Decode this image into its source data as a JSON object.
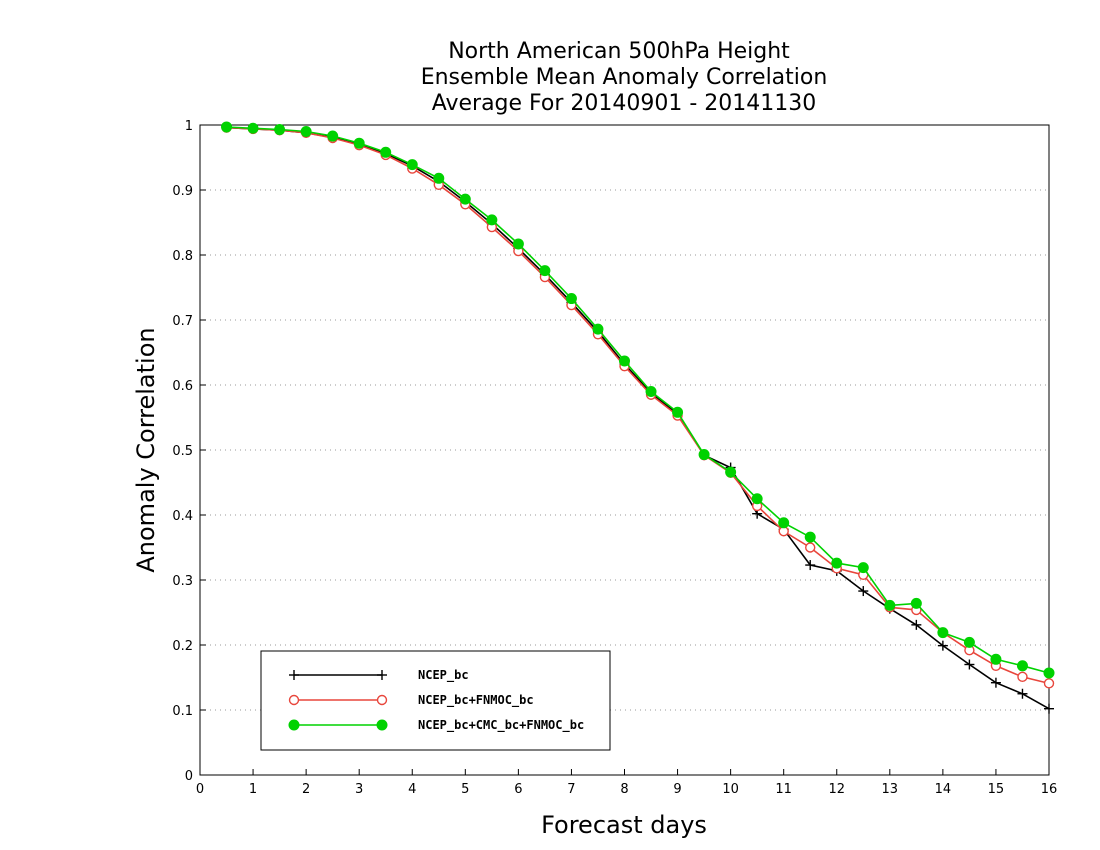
{
  "chart_data": {
    "type": "line",
    "title_lines": [
      "North American 500hPa Height",
      "Ensemble Mean Anomaly Correlation",
      "Average For 20140901 - 20141130"
    ],
    "xlabel": "Forecast days",
    "ylabel": "Anomaly Correlation",
    "xlim": [
      0,
      16
    ],
    "ylim": [
      0,
      1
    ],
    "x_ticks": [
      "0",
      "1",
      "2",
      "3",
      "4",
      "5",
      "6",
      "7",
      "8",
      "9",
      "10",
      "11",
      "12",
      "13",
      "14",
      "15",
      "16"
    ],
    "y_ticks": [
      "0",
      "0.1",
      "0.2",
      "0.3",
      "0.4",
      "0.5",
      "0.6",
      "0.7",
      "0.8",
      "0.9",
      "1"
    ],
    "grid": "horizontal-dotted",
    "legend_position": "bottom-left",
    "x": [
      0.5,
      1,
      1.5,
      2,
      2.5,
      3,
      3.5,
      4,
      4.5,
      5,
      5.5,
      6,
      6.5,
      7,
      7.5,
      8,
      8.5,
      9,
      9.5,
      10,
      10.5,
      11,
      11.5,
      12,
      12.5,
      13,
      13.5,
      14,
      14.5,
      15,
      15.5,
      16
    ],
    "series": [
      {
        "name": "NCEP_bc",
        "color": "#000000",
        "marker": "plus",
        "values": [
          0.996,
          0.994,
          0.992,
          0.988,
          0.981,
          0.97,
          0.956,
          0.937,
          0.913,
          0.882,
          0.848,
          0.81,
          0.77,
          0.727,
          0.682,
          0.632,
          0.588,
          0.555,
          0.492,
          0.473,
          0.402,
          0.378,
          0.323,
          0.314,
          0.283,
          0.256,
          0.231,
          0.199,
          0.17,
          0.142,
          0.125,
          0.102
        ]
      },
      {
        "name": "NCEP_bc+FNMOC_bc",
        "color": "#e8463c",
        "marker": "open-circle",
        "values": [
          0.996,
          0.994,
          0.992,
          0.988,
          0.98,
          0.969,
          0.954,
          0.933,
          0.908,
          0.878,
          0.843,
          0.806,
          0.766,
          0.723,
          0.678,
          0.629,
          0.585,
          0.553,
          0.492,
          0.465,
          0.414,
          0.375,
          0.35,
          0.318,
          0.308,
          0.258,
          0.254,
          0.219,
          0.192,
          0.168,
          0.151,
          0.141
        ]
      },
      {
        "name": "NCEP_bc+CMC_bc+FNMOC_bc",
        "color": "#00d200",
        "marker": "filled-circle",
        "values": [
          0.997,
          0.995,
          0.993,
          0.99,
          0.983,
          0.972,
          0.958,
          0.939,
          0.918,
          0.886,
          0.854,
          0.817,
          0.776,
          0.733,
          0.686,
          0.637,
          0.59,
          0.558,
          0.493,
          0.466,
          0.425,
          0.388,
          0.366,
          0.326,
          0.319,
          0.261,
          0.264,
          0.219,
          0.204,
          0.178,
          0.168,
          0.157
        ]
      }
    ]
  }
}
